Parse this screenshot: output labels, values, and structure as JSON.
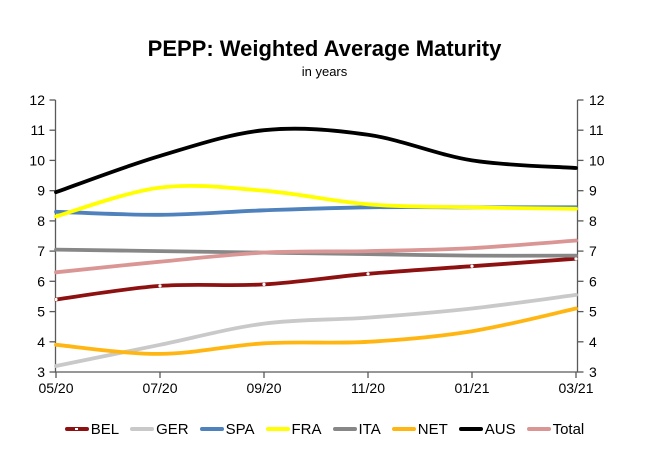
{
  "chart_data": {
    "type": "line",
    "title": "PEPP: Weighted Average Maturity",
    "subtitle": "in years",
    "xlabel": "",
    "ylabel": "",
    "ylim": [
      3,
      12
    ],
    "y_ticks": [
      12,
      11,
      10,
      9,
      8,
      7,
      6,
      5,
      4,
      3
    ],
    "x_tick_labels": [
      "05/20",
      "07/20",
      "09/20",
      "11/20",
      "01/21",
      "03/21"
    ],
    "dual_y_axis": true,
    "grid": false,
    "smooth_lines": true,
    "legend_position": "bottom",
    "axis_color": "#595959",
    "text_color": "#000000",
    "series": [
      {
        "name": "BEL",
        "color": "#8E1111",
        "marker": "white-dot",
        "values": [
          5.4,
          5.85,
          5.9,
          6.25,
          6.5,
          6.75
        ]
      },
      {
        "name": "GER",
        "color": "#C9C9C9",
        "marker": null,
        "values": [
          3.2,
          3.9,
          4.6,
          4.8,
          5.1,
          5.55
        ]
      },
      {
        "name": "SPA",
        "color": "#4F81BD",
        "marker": null,
        "values": [
          8.3,
          8.2,
          8.35,
          8.45,
          8.45,
          8.45
        ]
      },
      {
        "name": "FRA",
        "color": "#FFFF00",
        "marker": null,
        "values": [
          8.15,
          9.1,
          9.0,
          8.55,
          8.45,
          8.4
        ]
      },
      {
        "name": "ITA",
        "color": "#878787",
        "marker": null,
        "values": [
          7.05,
          7.0,
          6.95,
          6.9,
          6.85,
          6.85
        ]
      },
      {
        "name": "NET",
        "color": "#FFB612",
        "marker": null,
        "values": [
          3.9,
          3.6,
          3.95,
          4.0,
          4.35,
          5.1
        ]
      },
      {
        "name": "AUS",
        "color": "#000000",
        "marker": null,
        "values": [
          8.95,
          10.15,
          11.0,
          10.85,
          10.0,
          9.75
        ]
      },
      {
        "name": "Total",
        "color": "#D99694",
        "marker": null,
        "values": [
          6.3,
          6.65,
          6.95,
          7.0,
          7.1,
          7.35
        ]
      }
    ]
  }
}
